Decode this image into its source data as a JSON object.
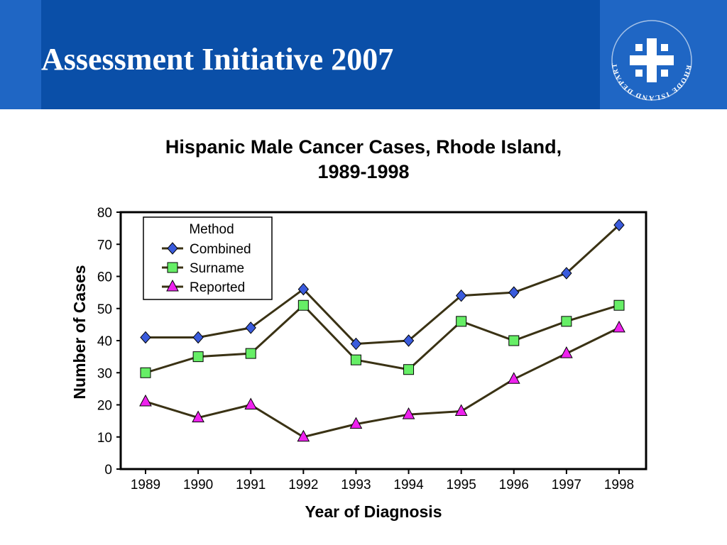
{
  "slide": {
    "title": "Assessment Initiative 2007"
  },
  "logo": {
    "text": "RHODE ISLAND DEPARTMENT OF HEALTH",
    "icon": "ri-health-cross-icon"
  },
  "colors": {
    "header_bg": "#0a4fa8",
    "header_accent": "#1f66c4",
    "line": "#3a3214",
    "combined": "#3a5bdc",
    "surname": "#66ee66",
    "reported": "#ee22ee"
  },
  "chart_data": {
    "type": "line",
    "title_lines": [
      "Hispanic Male Cancer Cases, Rhode Island,",
      "1989-1998"
    ],
    "xlabel": "Year of Diagnosis",
    "ylabel": "Number of Cases",
    "x": [
      "1989",
      "1990",
      "1991",
      "1992",
      "1993",
      "1994",
      "1995",
      "1996",
      "1997",
      "1998"
    ],
    "yticks": [
      "0",
      "10",
      "20",
      "30",
      "40",
      "50",
      "60",
      "70",
      "80"
    ],
    "ylim": [
      0,
      80
    ],
    "grid": false,
    "legend": {
      "title": "Method",
      "placement": "top-left"
    },
    "series": [
      {
        "name": "Combined",
        "marker": "diamond",
        "values": [
          41,
          41,
          44,
          56,
          39,
          40,
          54,
          55,
          61,
          76
        ]
      },
      {
        "name": "Surname",
        "marker": "square",
        "values": [
          30,
          35,
          36,
          51,
          34,
          31,
          46,
          40,
          46,
          51
        ]
      },
      {
        "name": "Reported",
        "marker": "triangle",
        "values": [
          21,
          16,
          20,
          10,
          14,
          17,
          18,
          28,
          36,
          44
        ]
      }
    ]
  }
}
